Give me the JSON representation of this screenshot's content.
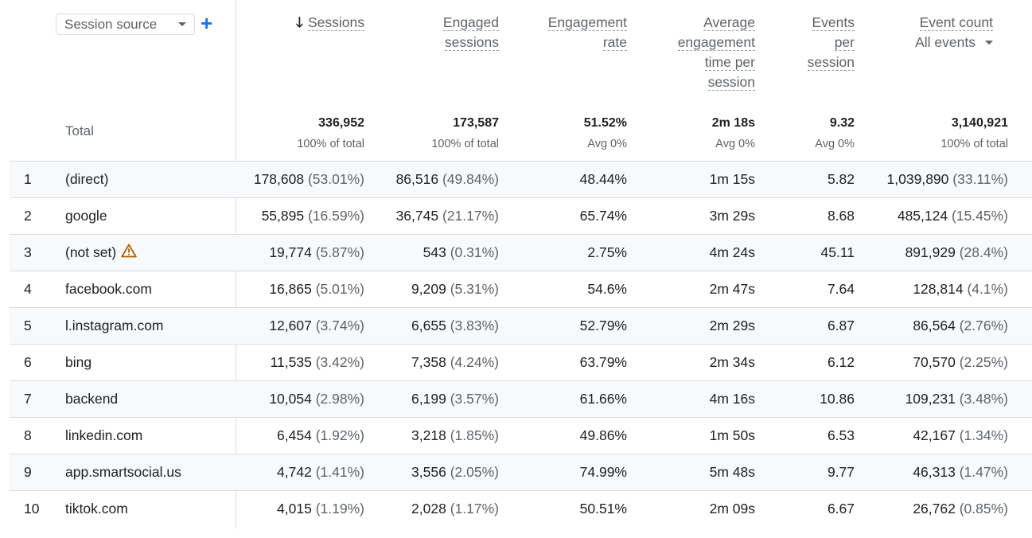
{
  "dimension": {
    "label": "Session source",
    "add_label": "+"
  },
  "headers": {
    "sessions": "Sessions",
    "engaged_sessions": [
      "Engaged",
      "sessions"
    ],
    "engagement_rate": [
      "Engagement",
      "rate"
    ],
    "avg_time": [
      "Average",
      "engagement",
      "time per",
      "session"
    ],
    "events_per_session": [
      "Events",
      "per",
      "session"
    ],
    "event_count": "Event count",
    "event_count_filter": "All events"
  },
  "totals": {
    "label": "Total",
    "sessions": "336,952",
    "sessions_sub": "100% of total",
    "engaged": "173,587",
    "engaged_sub": "100% of total",
    "rate": "51.52%",
    "rate_sub": "Avg 0%",
    "time": "2m 18s",
    "time_sub": "Avg 0%",
    "eps": "9.32",
    "eps_sub": "Avg 0%",
    "events": "3,140,921",
    "events_sub": "100% of total"
  },
  "rows": [
    {
      "idx": "1",
      "source": "(direct)",
      "warning": false,
      "sessions": "178,608",
      "sessions_pct": "(53.01%)",
      "engaged": "86,516",
      "engaged_pct": "(49.84%)",
      "rate": "48.44%",
      "time": "1m 15s",
      "eps": "5.82",
      "events": "1,039,890",
      "events_pct": "(33.11%)"
    },
    {
      "idx": "2",
      "source": "google",
      "warning": false,
      "sessions": "55,895",
      "sessions_pct": "(16.59%)",
      "engaged": "36,745",
      "engaged_pct": "(21.17%)",
      "rate": "65.74%",
      "time": "3m 29s",
      "eps": "8.68",
      "events": "485,124",
      "events_pct": "(15.45%)"
    },
    {
      "idx": "3",
      "source": "(not set)",
      "warning": true,
      "sessions": "19,774",
      "sessions_pct": "(5.87%)",
      "engaged": "543",
      "engaged_pct": "(0.31%)",
      "rate": "2.75%",
      "time": "4m 24s",
      "eps": "45.11",
      "events": "891,929",
      "events_pct": "(28.4%)"
    },
    {
      "idx": "4",
      "source": "facebook.com",
      "warning": false,
      "sessions": "16,865",
      "sessions_pct": "(5.01%)",
      "engaged": "9,209",
      "engaged_pct": "(5.31%)",
      "rate": "54.6%",
      "time": "2m 47s",
      "eps": "7.64",
      "events": "128,814",
      "events_pct": "(4.1%)"
    },
    {
      "idx": "5",
      "source": "l.instagram.com",
      "warning": false,
      "sessions": "12,607",
      "sessions_pct": "(3.74%)",
      "engaged": "6,655",
      "engaged_pct": "(3.83%)",
      "rate": "52.79%",
      "time": "2m 29s",
      "eps": "6.87",
      "events": "86,564",
      "events_pct": "(2.76%)"
    },
    {
      "idx": "6",
      "source": "bing",
      "warning": false,
      "sessions": "11,535",
      "sessions_pct": "(3.42%)",
      "engaged": "7,358",
      "engaged_pct": "(4.24%)",
      "rate": "63.79%",
      "time": "2m 34s",
      "eps": "6.12",
      "events": "70,570",
      "events_pct": "(2.25%)"
    },
    {
      "idx": "7",
      "source": "backend",
      "warning": false,
      "sessions": "10,054",
      "sessions_pct": "(2.98%)",
      "engaged": "6,199",
      "engaged_pct": "(3.57%)",
      "rate": "61.66%",
      "time": "4m 16s",
      "eps": "10.86",
      "events": "109,231",
      "events_pct": "(3.48%)"
    },
    {
      "idx": "8",
      "source": "linkedin.com",
      "warning": false,
      "sessions": "6,454",
      "sessions_pct": "(1.92%)",
      "engaged": "3,218",
      "engaged_pct": "(1.85%)",
      "rate": "49.86%",
      "time": "1m 50s",
      "eps": "6.53",
      "events": "42,167",
      "events_pct": "(1.34%)"
    },
    {
      "idx": "9",
      "source": "app.smartsocial.us",
      "warning": false,
      "sessions": "4,742",
      "sessions_pct": "(1.41%)",
      "engaged": "3,556",
      "engaged_pct": "(2.05%)",
      "rate": "74.99%",
      "time": "5m 48s",
      "eps": "9.77",
      "events": "46,313",
      "events_pct": "(1.47%)"
    },
    {
      "idx": "10",
      "source": "tiktok.com",
      "warning": false,
      "sessions": "4,015",
      "sessions_pct": "(1.19%)",
      "engaged": "2,028",
      "engaged_pct": "(1.17%)",
      "rate": "50.51%",
      "time": "2m 09s",
      "eps": "6.67",
      "events": "26,762",
      "events_pct": "(0.85%)"
    }
  ],
  "colors": {
    "accent": "#1a73e8",
    "warning": "#b06000",
    "alt_row": "#f8f9fa",
    "border": "#dadce0"
  }
}
